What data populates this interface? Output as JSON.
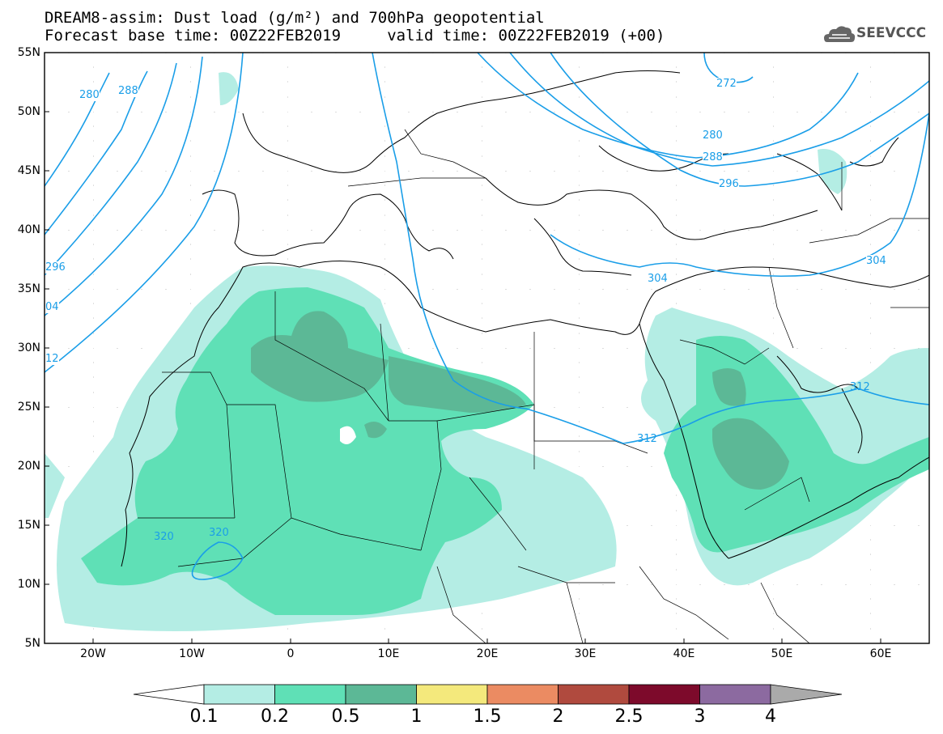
{
  "title": {
    "line1": "DREAM8-assim: Dust load (g/m²) and 700hPa geopotential",
    "line2": "Forecast base time: 00Z22FEB2019     valid time: 00Z22FEB2019 (+00)"
  },
  "logo": {
    "text": "SEEVCCC",
    "icon": "cloud-logo-icon"
  },
  "map": {
    "lat_ticks": [
      "55N",
      "50N",
      "45N",
      "40N",
      "35N",
      "30N",
      "25N",
      "20N",
      "15N",
      "10N",
      "5N"
    ],
    "lon_ticks": [
      "20W",
      "10W",
      "0",
      "10E",
      "20E",
      "30E",
      "40E",
      "50E",
      "60E"
    ],
    "contour_labels": [
      "280",
      "288",
      "296",
      "04",
      "12",
      "272",
      "280",
      "288",
      "296",
      "304",
      "304",
      "312",
      "312",
      "320",
      "320"
    ]
  },
  "colorbar": {
    "labels": [
      "0.1",
      "0.2",
      "0.5",
      "1",
      "1.5",
      "2",
      "2.5",
      "3",
      "4"
    ],
    "colors": [
      "#ffffff",
      "#b4ede4",
      "#5fe0b6",
      "#5cb896",
      "#f4e97c",
      "#eb8b62",
      "#b04a3e",
      "#7d0a2b",
      "#8c6aa0",
      "#aaaaaa"
    ]
  }
}
